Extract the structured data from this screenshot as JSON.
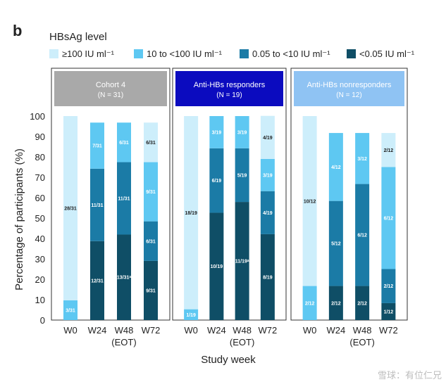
{
  "panel_label": "b",
  "legend": {
    "title": "HBsAg level",
    "items": [
      {
        "label": "≥100 IU ml⁻¹",
        "color": "#cdeefb"
      },
      {
        "label": "10 to <100 IU ml⁻¹",
        "color": "#5ec8f2"
      },
      {
        "label": "0.05 to <10 IU ml⁻¹",
        "color": "#1b7ba6"
      },
      {
        "label": "<0.05 IU ml⁻¹",
        "color": "#0f4e66"
      }
    ]
  },
  "watermark": "雪球：有位仁兄",
  "chart_data": {
    "type": "bar",
    "stacked": true,
    "ylabel": "Percentage of participants (%)",
    "xlabel": "Study week",
    "ylim": [
      0,
      100
    ],
    "yticks": [
      0,
      10,
      20,
      30,
      40,
      50,
      60,
      70,
      80,
      90,
      100
    ],
    "categories": [
      "W0",
      "W24",
      "W48",
      "W72"
    ],
    "category_sublabels": [
      "",
      "",
      "(EOT)",
      ""
    ],
    "series_names": [
      "<0.05 IU ml⁻¹",
      "0.05 to <10 IU ml⁻¹",
      "10 to <100 IU ml⁻¹",
      "≥100 IU ml⁻¹"
    ],
    "series_colors": [
      "#0f4e66",
      "#1b7ba6",
      "#5ec8f2",
      "#cdeefb"
    ],
    "label_colors": [
      "#ffffff",
      "#ffffff",
      "#ffffff",
      "#222222"
    ],
    "panels": [
      {
        "title": "Cohort 4",
        "subtitle": "(N = 31)",
        "header_color": "#a9a9a9",
        "bars": [
          {
            "values": [
              0,
              0,
              9.7,
              90.3
            ],
            "labels": [
              "",
              "",
              "3/31",
              "28/31"
            ]
          },
          {
            "values": [
              38.7,
              35.5,
              22.6,
              0
            ],
            "labels": [
              "12/31",
              "11/31",
              "7/31",
              ""
            ]
          },
          {
            "values": [
              41.9,
              35.5,
              19.4,
              0
            ],
            "labels": [
              "13/31ᵃ",
              "11/31",
              "6/31",
              ""
            ]
          },
          {
            "values": [
              29.0,
              19.4,
              29.0,
              19.4
            ],
            "labels": [
              "9/31",
              "6/31",
              "9/31",
              "6/31"
            ]
          }
        ]
      },
      {
        "title": "Anti-HBs responders",
        "subtitle": "(N = 19)",
        "header_color": "#0b0bbf",
        "bars": [
          {
            "values": [
              0,
              0,
              5.3,
              94.7
            ],
            "labels": [
              "",
              "",
              "1/19",
              "18/19"
            ]
          },
          {
            "values": [
              52.6,
              31.6,
              15.8,
              0
            ],
            "labels": [
              "10/19",
              "6/19",
              "3/19",
              ""
            ]
          },
          {
            "values": [
              57.9,
              26.3,
              15.8,
              0
            ],
            "labels": [
              "11/19ᵃ",
              "5/19",
              "3/19",
              ""
            ]
          },
          {
            "values": [
              42.1,
              21.1,
              15.8,
              21.1
            ],
            "labels": [
              "8/19",
              "4/19",
              "3/19",
              "4/19"
            ]
          }
        ]
      },
      {
        "title": "Anti-HBs nonresponders",
        "subtitle": "(N = 12)",
        "header_color": "#8fc3f3",
        "bars": [
          {
            "values": [
              0,
              0,
              16.7,
              83.3
            ],
            "labels": [
              "",
              "",
              "2/12",
              "10/12"
            ]
          },
          {
            "values": [
              16.7,
              41.7,
              33.3,
              0
            ],
            "labels": [
              "2/12",
              "5/12",
              "4/12",
              ""
            ]
          },
          {
            "values": [
              16.7,
              50.0,
              25.0,
              0
            ],
            "labels": [
              "2/12",
              "6/12",
              "3/12",
              ""
            ]
          },
          {
            "values": [
              8.3,
              16.7,
              50.0,
              16.7
            ],
            "labels": [
              "1/12",
              "2/12",
              "6/12",
              "2/12"
            ]
          }
        ]
      }
    ]
  }
}
